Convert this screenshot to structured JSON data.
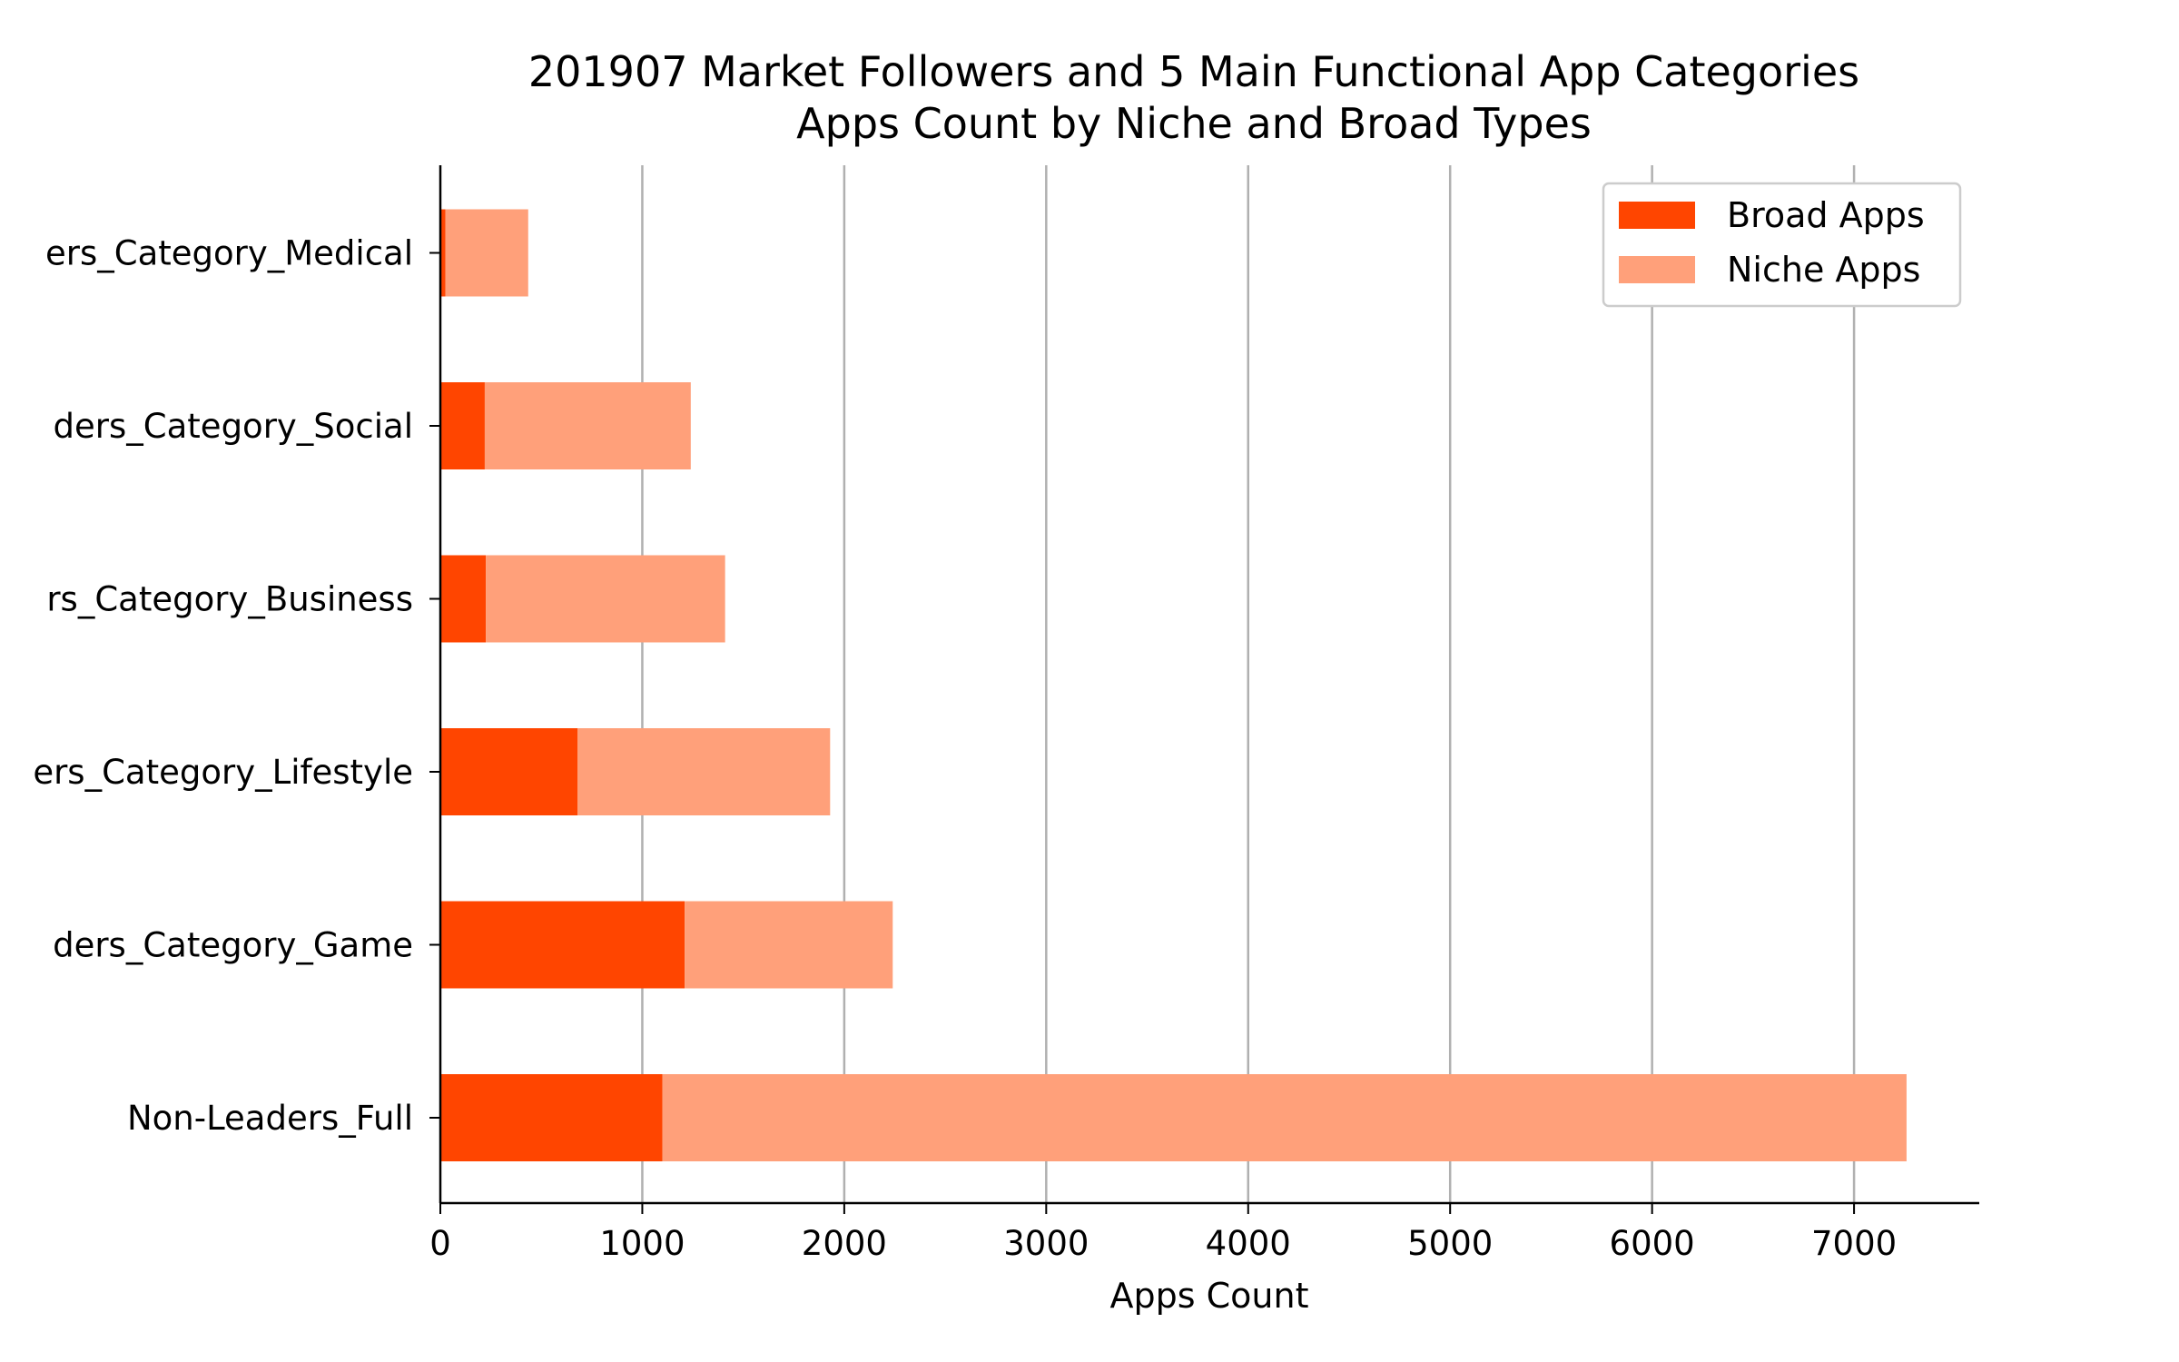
{
  "chart_data": {
    "type": "bar",
    "orientation": "horizontal",
    "stacked": true,
    "title": "201907 Market Followers and 5 Main Functional App Categories",
    "subtitle": "Apps Count by Niche and Broad Types",
    "xlabel": "Apps Count",
    "ylabel": "",
    "xlim": [
      0,
      7620
    ],
    "xticks": [
      0,
      1000,
      2000,
      3000,
      4000,
      5000,
      6000,
      7000
    ],
    "grid": "vertical",
    "legend_position": "top-right",
    "categories": [
      "Non-Leaders_Full",
      "ders_Category_Game",
      "ers_Category_Lifestyle",
      "rs_Category_Business",
      "ders_Category_Social",
      "ers_Category_Medical"
    ],
    "series": [
      {
        "name": "Broad Apps",
        "color": "#ff4500",
        "values": [
          1100,
          1210,
          680,
          225,
          220,
          25
        ]
      },
      {
        "name": "Niche Apps",
        "color": "#ffa07a",
        "values": [
          6160,
          1030,
          1250,
          1185,
          1020,
          410
        ]
      }
    ]
  }
}
